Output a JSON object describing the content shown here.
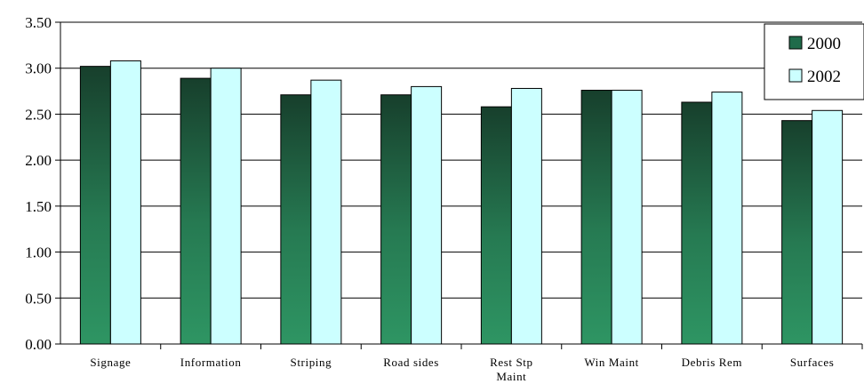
{
  "chart_data": {
    "type": "bar",
    "categories": [
      "Signage",
      "Information",
      "Striping",
      "Road sides",
      "Rest Stp Maint",
      "Win Maint",
      "Debris Rem",
      "Surfaces"
    ],
    "category_lines": [
      [
        "Signage"
      ],
      [
        "Information"
      ],
      [
        "Striping"
      ],
      [
        "Road sides"
      ],
      [
        "Rest Stp",
        "Maint"
      ],
      [
        "Win Maint"
      ],
      [
        "Debris Rem"
      ],
      [
        "Surfaces"
      ]
    ],
    "series": [
      {
        "name": "2000",
        "values": [
          3.02,
          2.89,
          2.71,
          2.71,
          2.58,
          2.76,
          2.63,
          2.43
        ],
        "color": "#1f6b4a"
      },
      {
        "name": "2002",
        "values": [
          3.08,
          3.0,
          2.87,
          2.8,
          2.78,
          2.76,
          2.74,
          2.54
        ],
        "color": "#ccffff"
      }
    ],
    "y_ticks": [
      "0.00",
      "0.50",
      "1.00",
      "1.50",
      "2.00",
      "2.50",
      "3.00",
      "3.50"
    ],
    "ylim": [
      0,
      3.5
    ],
    "grid": true,
    "legend_position": "top-right",
    "title": "",
    "xlabel": "",
    "ylabel": ""
  }
}
